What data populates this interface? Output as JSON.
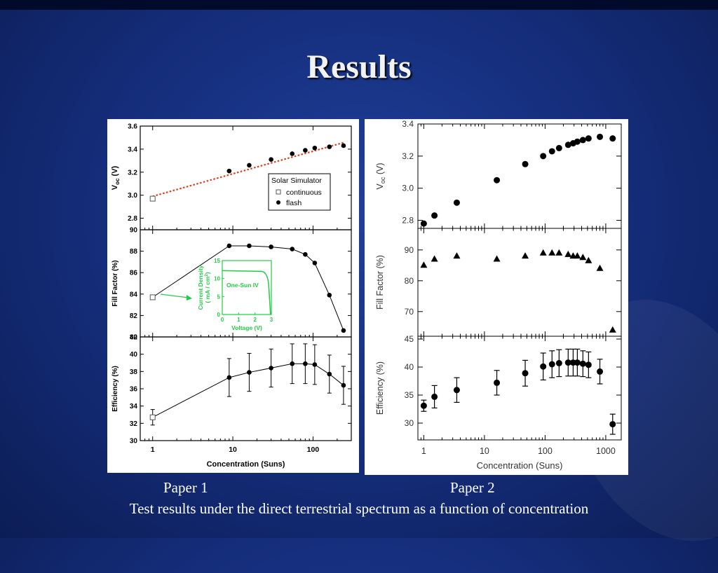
{
  "slide": {
    "title": "Results",
    "caption_left": "Paper 1",
    "caption_right": "Paper 2",
    "caption_main": "Test results under the direct terrestrial spectrum as a function of concentration"
  },
  "colors": {
    "background": "#16307f",
    "fit_line": "#d8401c",
    "inset": "#22cc44",
    "marker": "#000000"
  },
  "chart_data": [
    {
      "id": "paper1",
      "type": "scatter",
      "x_scale": "log",
      "xlabel": "Concentration (Suns)",
      "xticks": [
        1,
        10,
        100
      ],
      "xlim": [
        0.7,
        300
      ],
      "panels": [
        {
          "ylabel_main": "V",
          "ylabel_sub": "oc",
          "ylabel_unit": "(V)",
          "ylim": [
            2.7,
            3.6
          ],
          "yticks": [
            "2.8",
            "3.0",
            "3.2",
            "3.4",
            "3.6"
          ],
          "series": [
            {
              "name": "continuous",
              "marker": "open-square",
              "x": [
                1
              ],
              "y": [
                2.97
              ]
            },
            {
              "name": "flash",
              "marker": "filled-circle",
              "x": [
                9,
                16,
                30,
                55,
                80,
                105,
                160,
                240
              ],
              "y": [
                3.21,
                3.26,
                3.31,
                3.36,
                3.39,
                3.41,
                3.42,
                3.43
              ]
            }
          ],
          "fit_line": {
            "style": "dotted",
            "x": [
              1,
              250
            ],
            "y": [
              2.99,
              3.46
            ]
          },
          "legend": {
            "title": "Solar Simulator",
            "placement": "center-right",
            "entries": [
              "continuous",
              "flash"
            ]
          }
        },
        {
          "ylabel": "Fill Factor (%)",
          "ylim": [
            80,
            90
          ],
          "yticks": [
            "80",
            "82",
            "84",
            "86",
            "88",
            "90"
          ],
          "series": [
            {
              "name": "continuous",
              "marker": "open-square",
              "x": [
                1
              ],
              "y": [
                83.7
              ]
            },
            {
              "name": "flash",
              "marker": "filled-circle",
              "x": [
                9,
                16,
                30,
                55,
                80,
                105,
                160,
                240
              ],
              "y": [
                88.5,
                88.5,
                88.4,
                88.2,
                87.7,
                86.9,
                83.9,
                80.6
              ]
            }
          ],
          "inset": {
            "label": "One-Sun IV",
            "xlabel": "Voltage (V)",
            "ylabel": "Current Density",
            "ylabel2": "( mA / cm",
            "ylabel2_sup": "2",
            "ylabel2_tail": ")",
            "xticks": [
              "0",
              "1",
              "2",
              "3"
            ],
            "yticks": [
              "0",
              "5",
              "10",
              "15"
            ]
          }
        },
        {
          "ylabel": "Efficiency (%)",
          "ylim": [
            30,
            42
          ],
          "yticks": [
            "30",
            "32",
            "34",
            "36",
            "38",
            "40",
            "42"
          ],
          "series": [
            {
              "name": "continuous",
              "marker": "open-square",
              "x": [
                1
              ],
              "y": [
                32.7
              ],
              "err": [
                0.9
              ]
            },
            {
              "name": "flash",
              "marker": "filled-circle",
              "x": [
                9,
                16,
                30,
                55,
                80,
                105,
                160,
                240
              ],
              "y": [
                37.3,
                37.9,
                38.4,
                38.9,
                38.9,
                38.8,
                37.7,
                36.4
              ],
              "err": [
                2.2,
                2.2,
                2.2,
                2.3,
                2.3,
                2.3,
                2.2,
                2.2
              ]
            }
          ]
        }
      ]
    },
    {
      "id": "paper2",
      "type": "scatter",
      "x_scale": "log",
      "xlabel": "Concentration (Suns)",
      "xticks": [
        1,
        10,
        100,
        1000
      ],
      "xlim": [
        0.8,
        1800
      ],
      "panels": [
        {
          "ylabel_main": "V",
          "ylabel_sub": "oc",
          "ylabel_unit": "(V)",
          "ylim": [
            2.75,
            3.4
          ],
          "yticks": [
            "2.8",
            "3.0",
            "3.2",
            "3.4"
          ],
          "series": [
            {
              "name": "Voc",
              "marker": "filled-circle",
              "x": [
                1,
                1.5,
                3.5,
                16,
                47,
                93,
                130,
                170,
                240,
                290,
                340,
                420,
                520,
                800,
                1300
              ],
              "y": [
                2.78,
                2.83,
                2.91,
                3.05,
                3.15,
                3.2,
                3.23,
                3.25,
                3.27,
                3.28,
                3.29,
                3.3,
                3.31,
                3.32,
                3.31
              ]
            }
          ]
        },
        {
          "ylabel": "Fill Factor (%)",
          "ylim": [
            62,
            97
          ],
          "yticks": [
            "70",
            "80",
            "90"
          ],
          "series": [
            {
              "name": "FF",
              "marker": "filled-triangle",
              "x": [
                1,
                1.5,
                3.5,
                16,
                47,
                93,
                130,
                170,
                240,
                290,
                340,
                420,
                520,
                800,
                1300
              ],
              "y": [
                85,
                87,
                88,
                87,
                88,
                89,
                89,
                89,
                88.5,
                88,
                88,
                87.5,
                86.5,
                84,
                64
              ]
            }
          ]
        },
        {
          "ylabel": "Efficiency (%)",
          "ylim": [
            27,
            45.5
          ],
          "yticks": [
            "30",
            "35",
            "40",
            "45"
          ],
          "series": [
            {
              "name": "Efficiency",
              "marker": "filled-circle",
              "x": [
                1,
                1.5,
                3.5,
                16,
                47,
                93,
                130,
                170,
                240,
                290,
                340,
                420,
                520,
                800,
                1300
              ],
              "y": [
                33.1,
                34.7,
                35.9,
                37.2,
                38.9,
                40.1,
                40.5,
                40.7,
                40.8,
                40.8,
                40.8,
                40.6,
                40.4,
                39.2,
                29.8
              ],
              "err": [
                1.0,
                2.0,
                2.2,
                2.2,
                2.3,
                2.4,
                2.4,
                2.4,
                2.4,
                2.4,
                2.4,
                2.3,
                2.3,
                2.2,
                1.8
              ]
            }
          ]
        }
      ]
    }
  ]
}
